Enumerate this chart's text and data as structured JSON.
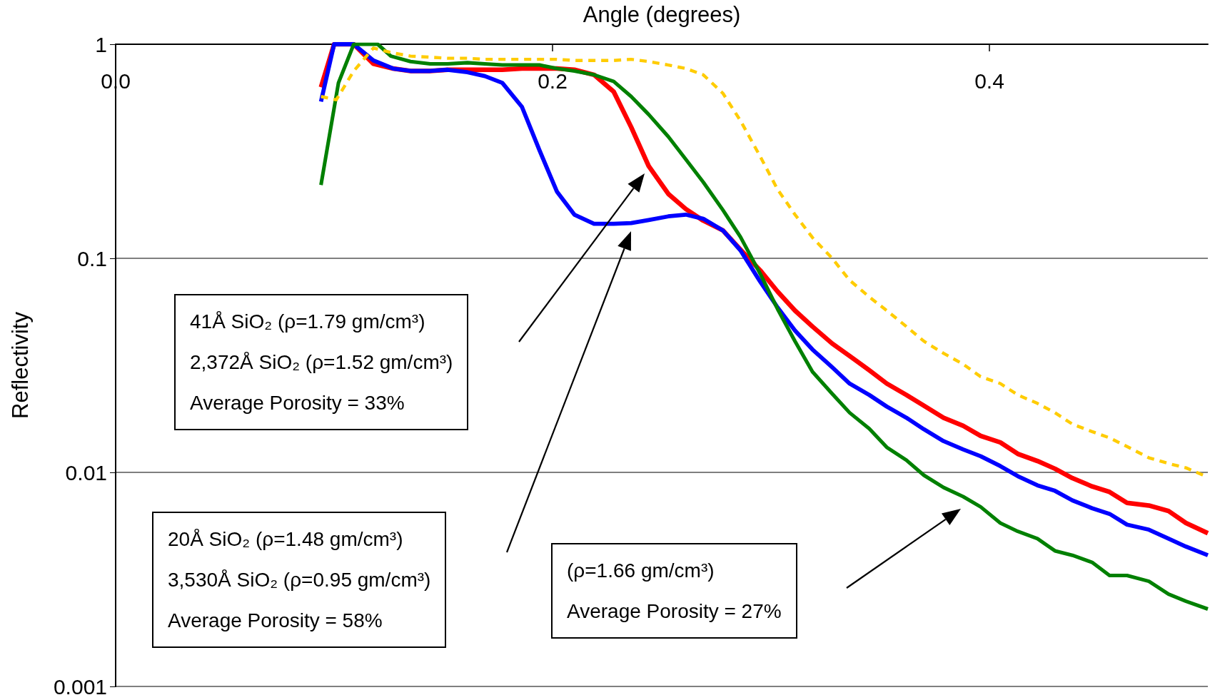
{
  "chart_data": {
    "type": "line",
    "xlabel": "Angle (degrees)",
    "ylabel": "Reflectivity",
    "xlim": [
      0,
      0.5
    ],
    "xticks": [
      {
        "value": 0,
        "label": "0.0"
      },
      {
        "value": 0.2,
        "label": "0.2"
      },
      {
        "value": 0.4,
        "label": "0.4"
      }
    ],
    "ylim": [
      0.001,
      1
    ],
    "yticks": [
      1,
      0.1,
      0.01,
      0.001
    ],
    "log": "y",
    "grid": "y",
    "marker": "none",
    "line_style": "solid",
    "series": [
      {
        "color": "#ff0000",
        "x": [
          0.094,
          0.1,
          0.109,
          0.118,
          0.127,
          0.135,
          0.144,
          0.152,
          0.161,
          0.169,
          0.177,
          0.186,
          0.194,
          0.202,
          0.21,
          0.219,
          0.228,
          0.236,
          0.244,
          0.253,
          0.261,
          0.269,
          0.278,
          0.286,
          0.295,
          0.303,
          0.311,
          0.319,
          0.328,
          0.336,
          0.345,
          0.353,
          0.362,
          0.37,
          0.379,
          0.388,
          0.396,
          0.405,
          0.413,
          0.422,
          0.43,
          0.438,
          0.447,
          0.455,
          0.463,
          0.473,
          0.482,
          0.49,
          0.5
        ],
        "values": [
          0.63,
          1.0,
          1.0,
          0.81,
          0.77,
          0.75,
          0.75,
          0.76,
          0.76,
          0.76,
          0.76,
          0.77,
          0.77,
          0.77,
          0.76,
          0.72,
          0.6,
          0.41,
          0.27,
          0.2,
          0.17,
          0.15,
          0.135,
          0.11,
          0.088,
          0.07,
          0.057,
          0.048,
          0.04,
          0.035,
          0.03,
          0.026,
          0.023,
          0.0205,
          0.018,
          0.0165,
          0.0148,
          0.0138,
          0.0122,
          0.0113,
          0.0104,
          0.0094,
          0.0086,
          0.0081,
          0.0072,
          0.007,
          0.0066,
          0.0058,
          0.0052
        ]
      },
      {
        "color": "#0000ff",
        "x": [
          0.094,
          0.1,
          0.109,
          0.118,
          0.127,
          0.135,
          0.144,
          0.152,
          0.161,
          0.169,
          0.177,
          0.186,
          0.194,
          0.202,
          0.21,
          0.219,
          0.228,
          0.236,
          0.244,
          0.253,
          0.261,
          0.269,
          0.278,
          0.286,
          0.295,
          0.303,
          0.311,
          0.319,
          0.328,
          0.336,
          0.345,
          0.353,
          0.362,
          0.37,
          0.379,
          0.388,
          0.396,
          0.405,
          0.413,
          0.422,
          0.43,
          0.438,
          0.447,
          0.455,
          0.463,
          0.473,
          0.482,
          0.49,
          0.5
        ],
        "values": [
          0.54,
          1.0,
          1.0,
          0.84,
          0.77,
          0.75,
          0.75,
          0.76,
          0.74,
          0.71,
          0.66,
          0.51,
          0.32,
          0.205,
          0.16,
          0.145,
          0.145,
          0.146,
          0.151,
          0.157,
          0.16,
          0.153,
          0.135,
          0.109,
          0.078,
          0.059,
          0.046,
          0.0375,
          0.031,
          0.026,
          0.023,
          0.0203,
          0.018,
          0.0159,
          0.014,
          0.0128,
          0.0119,
          0.0107,
          0.0096,
          0.0087,
          0.0082,
          0.0074,
          0.0068,
          0.0064,
          0.0057,
          0.0054,
          0.0049,
          0.0045,
          0.0041
        ]
      },
      {
        "color": "#008000",
        "x": [
          0.094,
          0.102,
          0.109,
          0.12,
          0.126,
          0.135,
          0.144,
          0.152,
          0.161,
          0.169,
          0.177,
          0.186,
          0.194,
          0.202,
          0.21,
          0.219,
          0.228,
          0.236,
          0.244,
          0.253,
          0.261,
          0.269,
          0.278,
          0.286,
          0.295,
          0.303,
          0.311,
          0.319,
          0.328,
          0.336,
          0.345,
          0.353,
          0.362,
          0.37,
          0.379,
          0.388,
          0.396,
          0.405,
          0.413,
          0.422,
          0.43,
          0.438,
          0.447,
          0.455,
          0.463,
          0.473,
          0.482,
          0.49,
          0.5
        ],
        "values": [
          0.22,
          0.66,
          1.0,
          1.0,
          0.88,
          0.83,
          0.81,
          0.81,
          0.82,
          0.81,
          0.8,
          0.8,
          0.8,
          0.77,
          0.75,
          0.72,
          0.67,
          0.57,
          0.47,
          0.37,
          0.29,
          0.227,
          0.168,
          0.126,
          0.085,
          0.058,
          0.041,
          0.0295,
          0.0233,
          0.019,
          0.016,
          0.0131,
          0.0114,
          0.0097,
          0.0085,
          0.0077,
          0.0069,
          0.0058,
          0.0053,
          0.0049,
          0.0043,
          0.0041,
          0.0038,
          0.0033,
          0.0033,
          0.0031,
          0.0027,
          0.0025,
          0.0023
        ]
      },
      {
        "color": "#ffcc00",
        "line_style": "dashed",
        "x": [
          0.094,
          0.101,
          0.109,
          0.118,
          0.127,
          0.135,
          0.144,
          0.152,
          0.161,
          0.169,
          0.177,
          0.186,
          0.194,
          0.202,
          0.21,
          0.219,
          0.228,
          0.236,
          0.244,
          0.253,
          0.261,
          0.269,
          0.278,
          0.286,
          0.295,
          0.303,
          0.311,
          0.319,
          0.328,
          0.336,
          0.345,
          0.353,
          0.362,
          0.37,
          0.379,
          0.388,
          0.396,
          0.405,
          0.413,
          0.422,
          0.43,
          0.438,
          0.447,
          0.455,
          0.463,
          0.473,
          0.482,
          0.49,
          0.5
        ],
        "values": [
          0.57,
          0.55,
          0.75,
          0.96,
          0.91,
          0.88,
          0.87,
          0.86,
          0.86,
          0.85,
          0.85,
          0.85,
          0.85,
          0.85,
          0.84,
          0.84,
          0.84,
          0.85,
          0.83,
          0.8,
          0.77,
          0.72,
          0.59,
          0.44,
          0.3,
          0.21,
          0.16,
          0.125,
          0.1,
          0.079,
          0.066,
          0.057,
          0.048,
          0.041,
          0.036,
          0.032,
          0.028,
          0.026,
          0.023,
          0.021,
          0.019,
          0.0168,
          0.0155,
          0.0145,
          0.0132,
          0.0117,
          0.011,
          0.0105,
          0.0095
        ]
      }
    ],
    "annotations": [
      "41Å SiO₂ (ρ=1.79 gm/cm³)\n2,372Å SiO₂ (ρ=1.52 gm/cm³)\nAverage Porosity = 33%",
      "20Å SiO₂ (ρ=1.48 gm/cm³)\n3,530Å SiO₂ (ρ=0.95 gm/cm³)\nAverage Porosity = 58%",
      "(ρ=1.66 gm/cm³)\nAverage Porosity = 27%"
    ]
  }
}
